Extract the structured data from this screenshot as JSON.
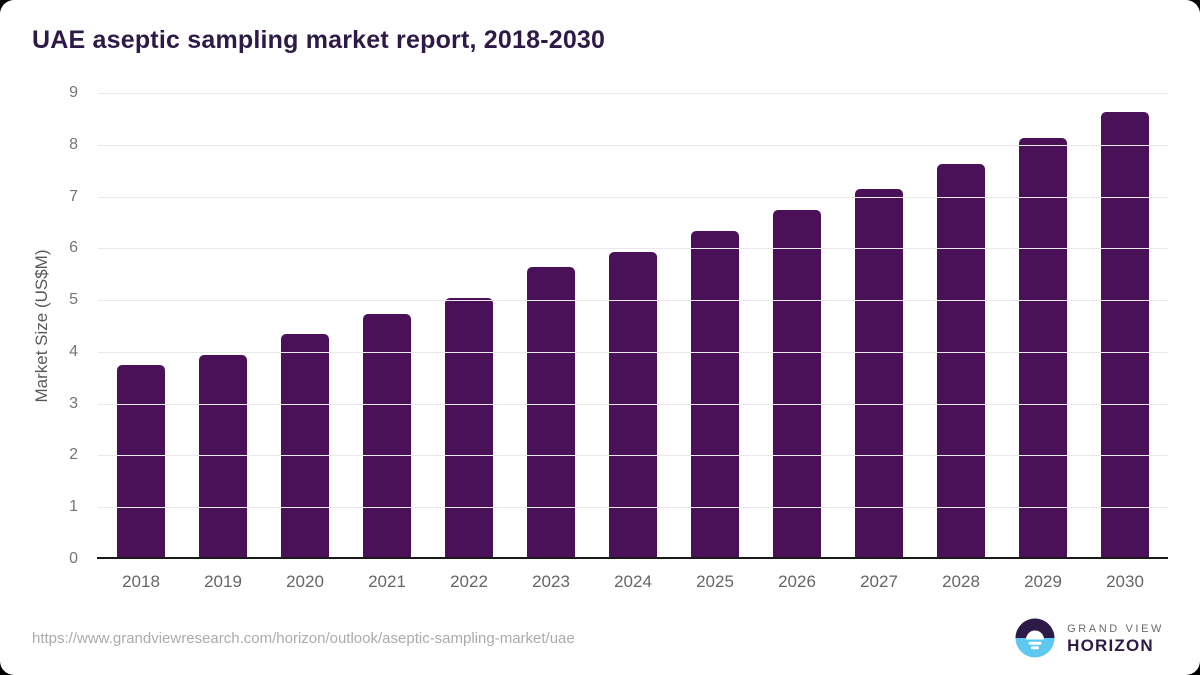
{
  "title": "UAE aseptic sampling market report, 2018-2030",
  "chart_data": {
    "type": "bar",
    "title": "UAE aseptic sampling market report, 2018-2030",
    "categories": [
      "2018",
      "2019",
      "2020",
      "2021",
      "2022",
      "2023",
      "2024",
      "2025",
      "2026",
      "2027",
      "2028",
      "2029",
      "2030"
    ],
    "values": [
      3.7,
      3.9,
      4.3,
      4.7,
      5.0,
      5.6,
      5.9,
      6.3,
      6.7,
      7.1,
      7.6,
      8.1,
      8.6
    ],
    "xlabel": "",
    "ylabel": "Market Size (US$M)",
    "ylim": [
      0,
      9
    ],
    "yticks": [
      0,
      1,
      2,
      3,
      4,
      5,
      6,
      7,
      8,
      9
    ],
    "grid": true,
    "legend_position": "none",
    "bar_color": "#4A1159"
  },
  "footer": {
    "source_url": "https://www.grandviewresearch.com/horizon/outlook/aseptic-sampling-market/uae",
    "logo": {
      "line1": "GRAND VIEW",
      "line2": "HORIZON"
    }
  },
  "colors": {
    "title_text": "#2E1A47",
    "bar": "#4A1159",
    "gridline": "#E9E9E9",
    "axis_line": "#1A1A1A",
    "tick_text": "#757575",
    "url_text": "#ABABAB",
    "logo_purple": "#2E1A47",
    "logo_blue": "#5FC8F1"
  }
}
